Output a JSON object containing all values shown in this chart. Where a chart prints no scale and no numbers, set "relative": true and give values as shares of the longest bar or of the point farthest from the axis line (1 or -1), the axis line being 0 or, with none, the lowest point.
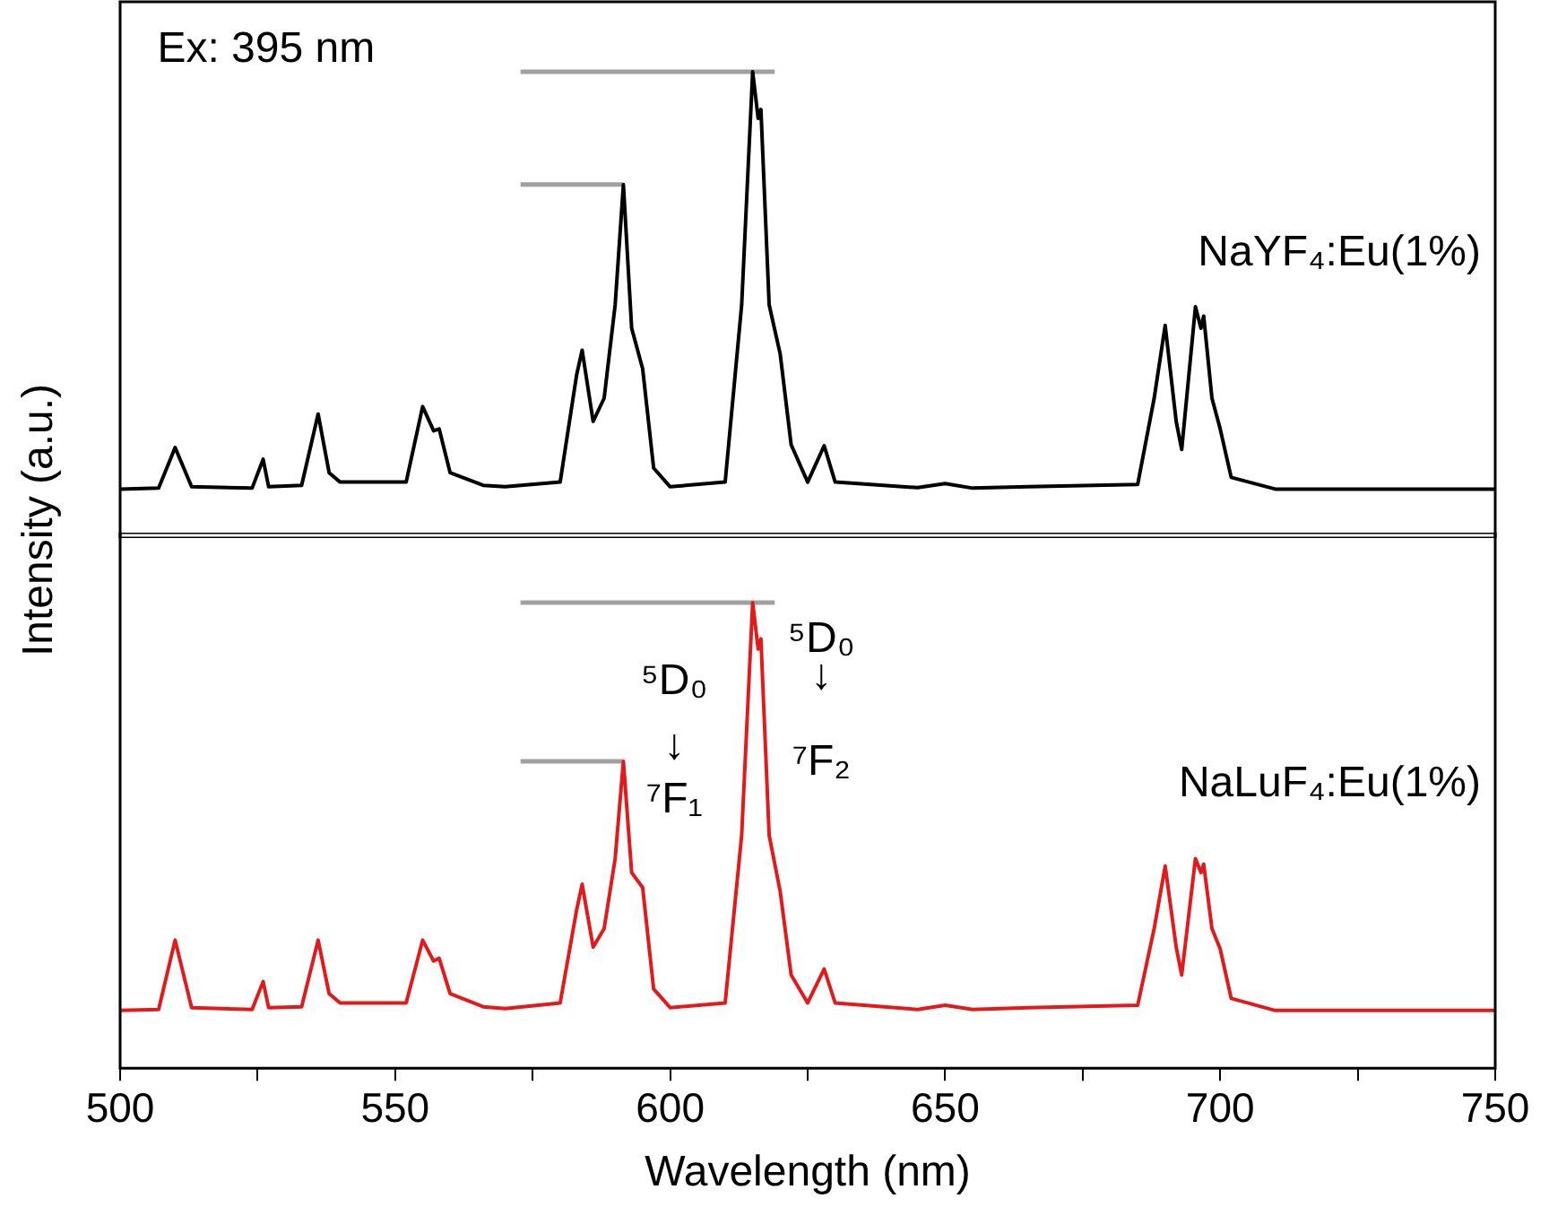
{
  "chart_data": [
    {
      "type": "line",
      "relative": true,
      "ylabel": "Intensity (a.u.)",
      "xlim": [
        500,
        750
      ],
      "tick_labels": false,
      "grid": false,
      "legend": false,
      "annotations": [
        "Ex: 395 nm"
      ],
      "series": [
        {
          "name": "NaYF₄:Eu(1%)",
          "color": "#000000",
          "x": [
            500,
            507,
            510,
            513,
            524,
            526,
            527,
            533,
            536,
            538,
            540,
            552,
            555,
            557,
            558,
            560,
            566,
            570,
            580,
            583,
            584,
            586,
            588,
            590,
            591.5,
            593,
            595,
            597,
            600,
            610,
            613,
            615,
            616,
            616.5,
            618,
            620,
            622,
            625,
            628,
            630,
            645,
            650,
            655,
            665,
            685,
            688,
            690,
            692,
            693,
            695.5,
            696.5,
            697,
            698.5,
            700,
            702,
            710,
            750
          ],
          "values": [
            0.105,
            0.107,
            0.194,
            0.11,
            0.107,
            0.169,
            0.11,
            0.113,
            0.266,
            0.14,
            0.12,
            0.12,
            0.282,
            0.23,
            0.234,
            0.14,
            0.113,
            0.11,
            0.12,
            0.35,
            0.403,
            0.25,
            0.3,
            0.5,
            0.758,
            0.45,
            0.363,
            0.15,
            0.11,
            0.12,
            0.5,
            1.0,
            0.9,
            0.919,
            0.5,
            0.395,
            0.2,
            0.12,
            0.198,
            0.12,
            0.108,
            0.117,
            0.107,
            0.11,
            0.115,
            0.3,
            0.456,
            0.25,
            0.19,
            0.496,
            0.45,
            0.476,
            0.3,
            0.234,
            0.13,
            0.105,
            0.105
          ]
        },
        {
          "type": "line",
          "color": "#a0a0a0",
          "x": [
            572.8,
            619
          ],
          "values": [
            1.0,
            1.0
          ]
        },
        {
          "type": "line",
          "color": "#a0a0a0",
          "x": [
            572.8,
            591.4
          ],
          "values": [
            0.758,
            0.758
          ]
        }
      ]
    },
    {
      "type": "line",
      "relative": true,
      "xlabel": "Wavelength (nm)",
      "xlim": [
        500,
        750
      ],
      "xticks": [
        500,
        {
          "value": 525,
          "label": null
        },
        550,
        {
          "value": 575,
          "label": null
        },
        600,
        {
          "value": 625,
          "label": null
        },
        650,
        {
          "value": 675,
          "label": null
        },
        700,
        {
          "value": 725,
          "label": null
        },
        750
      ],
      "grid": false,
      "legend": false,
      "annotations": [
        "⁵D₀",
        "↓",
        "⁷F₁",
        "⁵D₀",
        "↓",
        "⁷F₂"
      ],
      "series": [
        {
          "name": "NaLuF₄:Eu(1%)",
          "color": "#e31a1c",
          "x": [
            500,
            507,
            510,
            513,
            524,
            526,
            527,
            533,
            536,
            538,
            540,
            552,
            555,
            557,
            558,
            560,
            566,
            570,
            580,
            583,
            584,
            586,
            588,
            590,
            591.5,
            593,
            595,
            597,
            600,
            610,
            613,
            615,
            616,
            616.5,
            618,
            620,
            622,
            625,
            628,
            630,
            645,
            650,
            655,
            665,
            685,
            688,
            690,
            692,
            693,
            695.5,
            696.5,
            697,
            698.5,
            700,
            702,
            710,
            750
          ],
          "values": [
            0.124,
            0.126,
            0.275,
            0.13,
            0.126,
            0.186,
            0.13,
            0.132,
            0.275,
            0.16,
            0.14,
            0.14,
            0.275,
            0.23,
            0.236,
            0.16,
            0.132,
            0.128,
            0.14,
            0.34,
            0.395,
            0.26,
            0.3,
            0.45,
            0.659,
            0.42,
            0.388,
            0.17,
            0.13,
            0.14,
            0.5,
            1.0,
            0.9,
            0.922,
            0.5,
            0.38,
            0.2,
            0.14,
            0.213,
            0.14,
            0.126,
            0.135,
            0.126,
            0.13,
            0.135,
            0.3,
            0.434,
            0.26,
            0.2,
            0.45,
            0.42,
            0.438,
            0.3,
            0.256,
            0.15,
            0.124,
            0.124
          ]
        },
        {
          "type": "line",
          "color": "#a0a0a0",
          "x": [
            572.8,
            619
          ],
          "values": [
            1.0,
            1.0
          ]
        },
        {
          "type": "line",
          "color": "#a0a0a0",
          "x": [
            572.8,
            591.4
          ],
          "values": [
            0.659,
            0.659
          ]
        }
      ]
    }
  ]
}
